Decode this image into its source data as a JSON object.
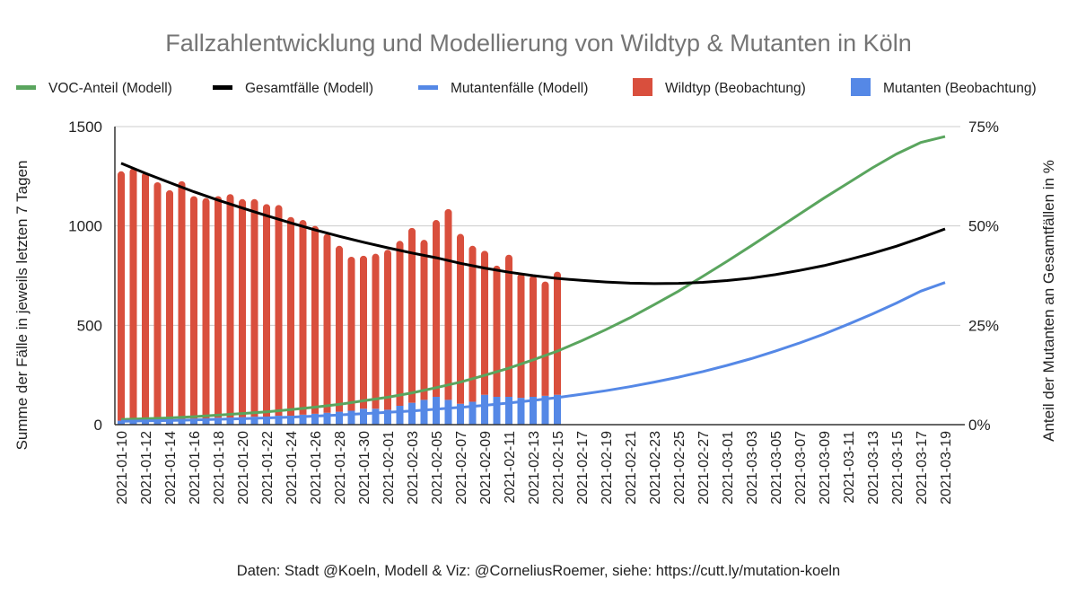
{
  "chart_data": {
    "type": "bar",
    "title": "Fallzahlentwicklung und Modellierung von Wildtyp & Mutanten in Köln",
    "ylabel": "Summe der Fälle in jeweils letzten 7 Tagen",
    "ylabel_right": "Anteil der Mutanten an Gesamtfällen in %",
    "footer": "Daten: Stadt @Koeln, Modell & Viz: @CorneliusRoemer, siehe: https://cutt.ly/mutation-koeln",
    "ylim": [
      0,
      1500
    ],
    "ylim_right": [
      0,
      75
    ],
    "yticks": [
      "0",
      "500",
      "1000",
      "1500"
    ],
    "yticks_right": [
      "0%",
      "25%",
      "50%",
      "75%"
    ],
    "legend_position": "top",
    "grid": true,
    "legend": [
      {
        "name": "VOC-Anteil (Modell)",
        "color": "#5aa55e",
        "kind": "line"
      },
      {
        "name": "Gesamtfälle (Modell)",
        "color": "#000000",
        "kind": "line"
      },
      {
        "name": "Mutantenfälle (Modell)",
        "color": "#5588e6",
        "kind": "line"
      },
      {
        "name": "Wildtyp (Beobachtung)",
        "color": "#d94f3d",
        "kind": "bar"
      },
      {
        "name": "Mutanten (Beobachtung)",
        "color": "#5588e6",
        "kind": "bar"
      }
    ],
    "xticks": [
      "2021-01-10",
      "2021-01-12",
      "2021-01-14",
      "2021-01-16",
      "2021-01-18",
      "2021-01-20",
      "2021-01-22",
      "2021-01-24",
      "2021-01-26",
      "2021-01-28",
      "2021-01-30",
      "2021-02-01",
      "2021-02-03",
      "2021-02-05",
      "2021-02-07",
      "2021-02-09",
      "2021-02-11",
      "2021-02-13",
      "2021-02-15",
      "2021-02-17",
      "2021-02-19",
      "2021-02-21",
      "2021-02-23",
      "2021-02-25",
      "2021-02-27",
      "2021-03-01",
      "2021-03-03",
      "2021-03-05",
      "2021-03-07",
      "2021-03-09",
      "2021-03-11",
      "2021-03-13",
      "2021-03-15",
      "2021-03-17",
      "2021-03-19"
    ],
    "observed_start": "2021-01-10",
    "observed_days": 37,
    "mutanten_beobachtung": [
      20,
      20,
      22,
      25,
      25,
      28,
      30,
      30,
      35,
      35,
      38,
      40,
      40,
      45,
      45,
      50,
      55,
      60,
      65,
      70,
      80,
      80,
      75,
      95,
      110,
      125,
      140,
      125,
      105,
      115,
      150,
      140,
      140,
      135,
      140,
      145,
      150
    ],
    "wildtyp_beobachtung": [
      1255,
      1270,
      1248,
      1195,
      1155,
      1197,
      1120,
      1110,
      1115,
      1125,
      1097,
      1095,
      1070,
      1060,
      1000,
      980,
      945,
      900,
      835,
      775,
      770,
      780,
      805,
      830,
      880,
      805,
      890,
      960,
      855,
      785,
      725,
      660,
      715,
      625,
      610,
      575,
      620
    ],
    "model_step_days": 2,
    "gesamtfaelle_modell": [
      1315,
      1265,
      1218,
      1172,
      1130,
      1090,
      1052,
      1015,
      980,
      948,
      918,
      890,
      864,
      840,
      812,
      788,
      767,
      750,
      736,
      726,
      718,
      712,
      710,
      711,
      716,
      725,
      738,
      755,
      776,
      800,
      830,
      862,
      898,
      940,
      985
    ],
    "voc_anteil_modell_pct": [
      1.3,
      1.5,
      1.7,
      2.0,
      2.4,
      2.8,
      3.2,
      3.8,
      4.4,
      5.1,
      6.0,
      6.9,
      8.0,
      9.3,
      10.7,
      12.4,
      14.2,
      16.3,
      18.5,
      21.1,
      23.9,
      26.9,
      30.2,
      33.6,
      37.3,
      41.1,
      45.0,
      49.0,
      53.0,
      57.0,
      60.8,
      64.6,
      68.1,
      71.0,
      72.5
    ],
    "mutantenfaelle_modell": [
      17,
      19,
      21,
      24,
      27,
      30,
      34,
      38,
      43,
      49,
      55,
      62,
      69,
      78,
      87,
      97,
      109,
      122,
      136,
      153,
      171,
      191,
      214,
      239,
      267,
      298,
      332,
      370,
      411,
      456,
      505,
      557,
      612,
      672,
      715
    ]
  }
}
